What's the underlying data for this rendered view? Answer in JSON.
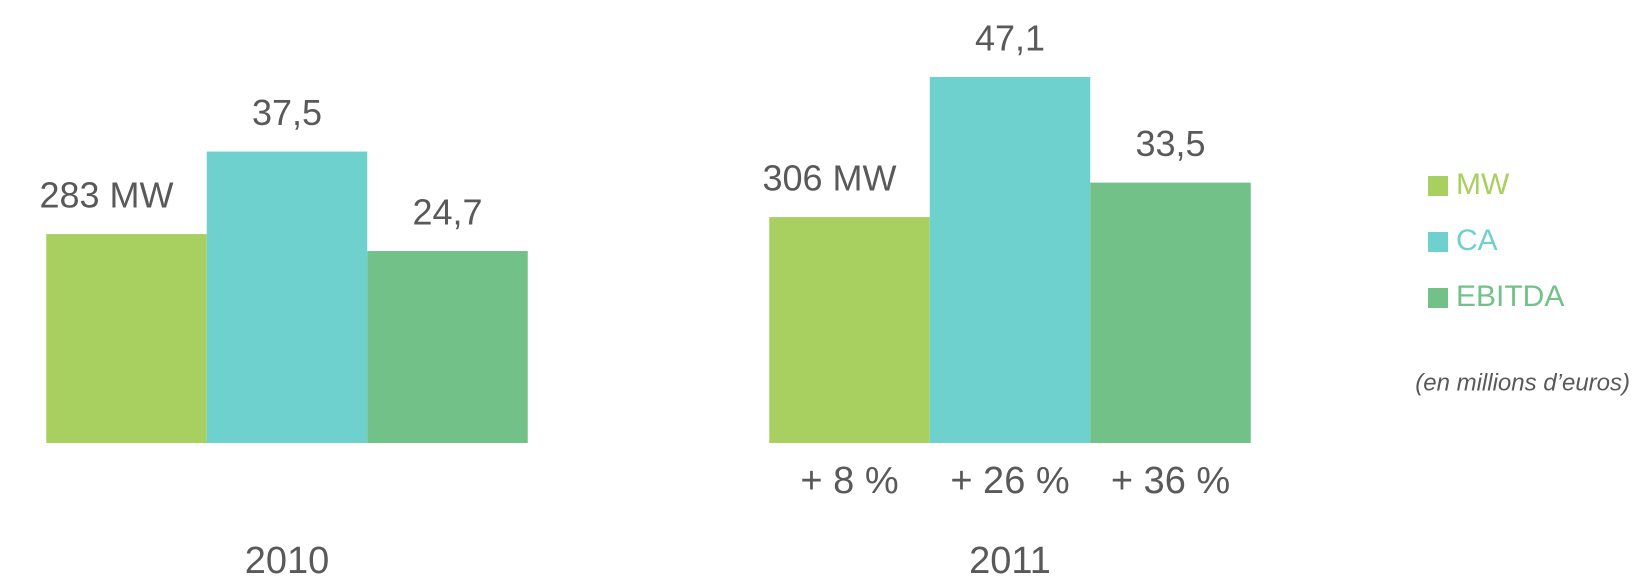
{
  "chart_data": {
    "type": "bar",
    "categories": [
      "2010",
      "2011"
    ],
    "series": [
      {
        "name": "MW",
        "color": "#a8d060",
        "axis": "y2",
        "values": [
          283,
          306
        ],
        "value_labels": [
          "283 MW",
          "306 MW"
        ]
      },
      {
        "name": "CA",
        "color": "#6fd1ce",
        "values": [
          37.5,
          47.1
        ],
        "value_labels": [
          "37,5",
          "47,1"
        ]
      },
      {
        "name": "EBITDA",
        "color": "#72c189",
        "values": [
          24.7,
          33.5
        ],
        "value_labels": [
          "24,7",
          "33,5"
        ]
      }
    ],
    "ylim": [
      0,
      57
    ],
    "y2lim": [
      0,
      600
    ],
    "growth_labels": [
      "+ 8 %",
      "+ 26 %",
      "+ 36 %"
    ],
    "note": "(en millions d’euros)",
    "legend": "right"
  }
}
